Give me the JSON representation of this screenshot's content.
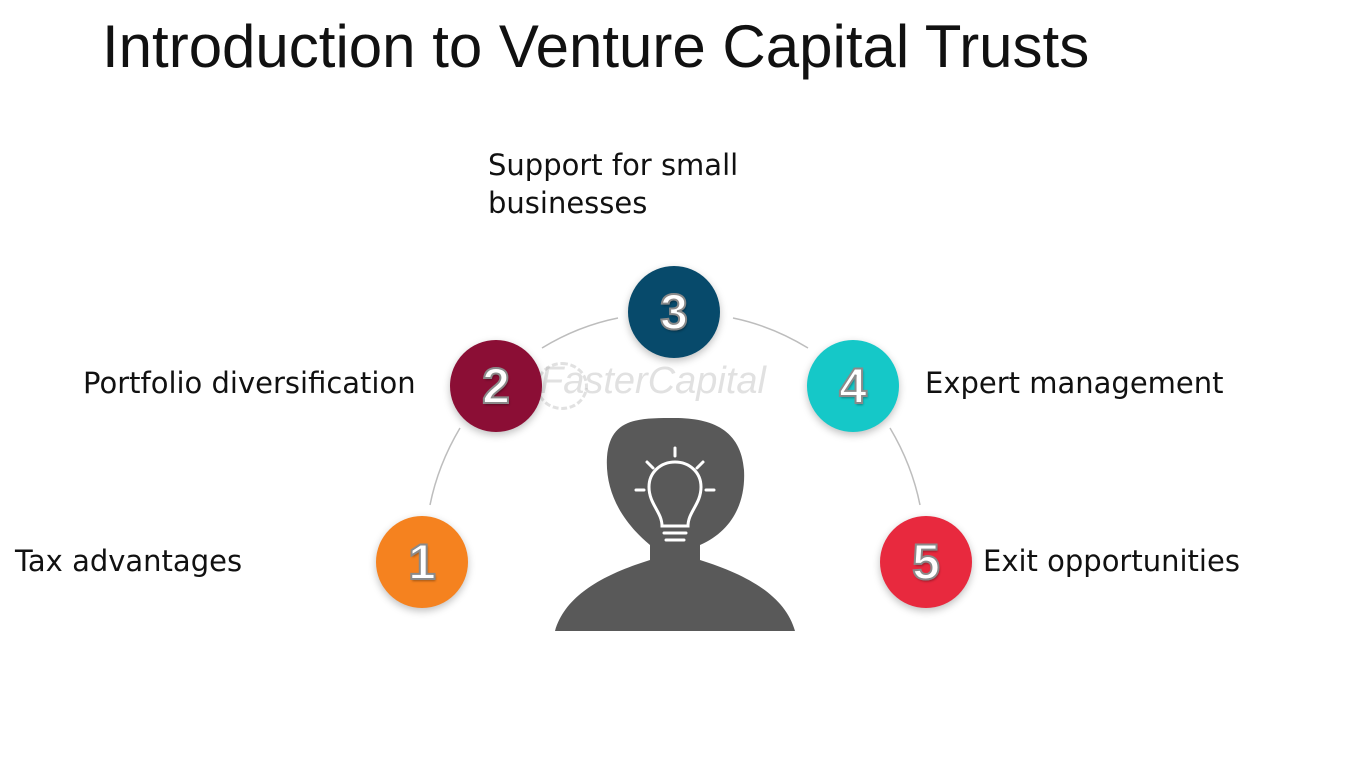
{
  "title": "Introduction to Venture Capital Trusts",
  "watermark": "FasterCapital",
  "steps": [
    {
      "number": "1",
      "label": "Tax advantages",
      "color": "#f5821f"
    },
    {
      "number": "2",
      "label": "Portfolio diversification",
      "color": "#8b0e35"
    },
    {
      "number": "3",
      "label": "Support for small businesses",
      "label_line1": "Support for small",
      "label_line2": "businesses",
      "color": "#074a6b"
    },
    {
      "number": "4",
      "label": "Expert management",
      "color": "#15c8c8"
    },
    {
      "number": "5",
      "label": "Exit opportunities",
      "color": "#e8293e"
    }
  ],
  "icons": {
    "head": "person-head-silhouette-icon",
    "bulb": "lightbulb-icon",
    "head_color": "#595959",
    "arc_color": "#bdbdbd"
  }
}
